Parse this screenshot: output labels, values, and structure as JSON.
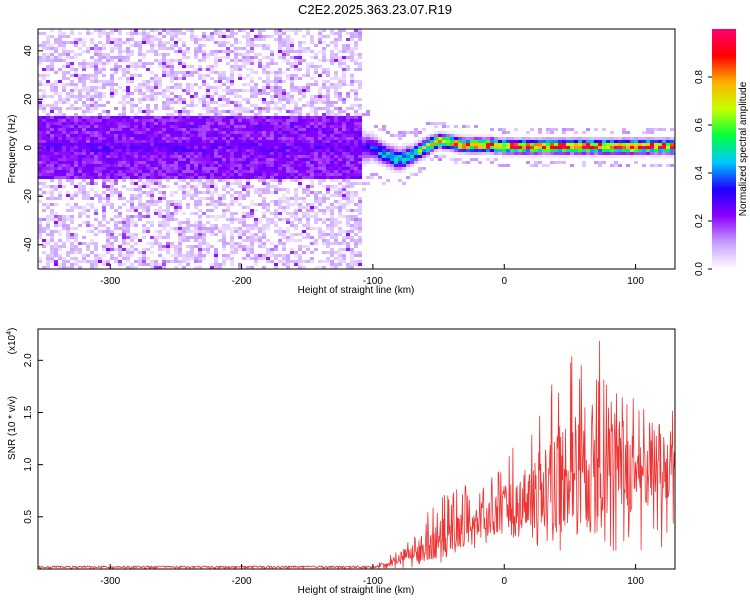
{
  "title": "C2E2.2025.363.23.07.R19",
  "chart_data": [
    {
      "type": "heatmap",
      "title": "C2E2.2025.363.23.07.R19",
      "xlabel": "Height of straight line (km)",
      "ylabel": "Frequency (Hz)",
      "xlim": [
        -355,
        130
      ],
      "ylim": [
        -50,
        49
      ],
      "xticks": [
        -300,
        -200,
        -100,
        0,
        100
      ],
      "xtick_labels": [
        "-300",
        "-200",
        "-100",
        "0",
        "100"
      ],
      "yticks": [
        -40,
        -20,
        0,
        20,
        40
      ],
      "ytick_labels": [
        "-40",
        "-20",
        "0",
        "20",
        "40"
      ],
      "ridge": {
        "x": [
          -355,
          -108,
          -100,
          -90,
          -80,
          -70,
          -60,
          -50,
          -40,
          -30,
          -20,
          -10,
          0,
          20,
          40,
          60,
          80,
          100,
          130
        ],
        "freq": [
          0,
          0,
          0,
          -3,
          -5,
          -3,
          0,
          3,
          2,
          1,
          1,
          1,
          0.5,
          0.5,
          0.5,
          0.5,
          0.5,
          0.5,
          0.5
        ],
        "peak_amplitude": [
          0.25,
          0.25,
          0.35,
          0.45,
          0.5,
          0.55,
          0.6,
          0.7,
          0.78,
          0.82,
          0.85,
          0.85,
          0.85,
          0.87,
          0.88,
          0.9,
          0.9,
          0.9,
          0.9
        ],
        "band_halfwidth_hz": [
          9,
          9,
          7,
          6,
          6,
          5,
          5,
          4,
          4,
          4,
          4,
          4,
          4,
          4,
          4,
          4,
          4,
          4,
          4
        ]
      },
      "noise_region_x": [
        -355,
        -108
      ],
      "colorbar": {
        "label": "Normalized spectral amplitude",
        "range": [
          0,
          1
        ],
        "ticks": [
          0.0,
          0.2,
          0.4,
          0.6,
          0.8
        ],
        "tick_labels": [
          "0.0",
          "0.2",
          "0.4",
          "0.6",
          "0.8"
        ],
        "colors": [
          "#ffffff",
          "#c79bff",
          "#8a00ff",
          "#1e00ff",
          "#00c8ff",
          "#00ff3c",
          "#c8ff00",
          "#ffb000",
          "#ff0000",
          "#ff0070"
        ]
      }
    },
    {
      "type": "line",
      "xlabel": "Height of straight line (km)",
      "ylabel": "SNR (10 * v/v)",
      "exponent_label": "(x10",
      "exponent_power": "4",
      "exponent_close": ")",
      "xlim": [
        -355,
        130
      ],
      "ylim": [
        0,
        2.3
      ],
      "xticks": [
        -300,
        -200,
        -100,
        0,
        100
      ],
      "xtick_labels": [
        "-300",
        "-200",
        "-100",
        "0",
        "100"
      ],
      "yticks": [
        0.5,
        1.0,
        1.5,
        2.0
      ],
      "ytick_labels": [
        "0.5",
        "1.0",
        "1.5",
        "2.0"
      ],
      "color": "#ee3333",
      "series": [
        {
          "name": "SNR",
          "x": [
            -355,
            -100,
            -90,
            -80,
            -70,
            -60,
            -50,
            -40,
            -30,
            -20,
            -10,
            0,
            10,
            20,
            30,
            40,
            50,
            60,
            70,
            75,
            80,
            90,
            100,
            110,
            120,
            130
          ],
          "mean": [
            0.02,
            0.02,
            0.04,
            0.1,
            0.16,
            0.22,
            0.28,
            0.33,
            0.38,
            0.45,
            0.5,
            0.55,
            0.62,
            0.72,
            0.82,
            0.9,
            0.95,
            1.0,
            1.02,
            1.05,
            1.0,
            0.98,
            0.95,
            0.95,
            0.95,
            0.95
          ],
          "max": [
            0.03,
            0.03,
            0.1,
            0.2,
            0.3,
            0.55,
            0.7,
            0.75,
            0.8,
            0.8,
            0.9,
            1.2,
            1.3,
            1.4,
            1.6,
            2.0,
            2.15,
            2.15,
            2.2,
            2.3,
            1.8,
            1.75,
            1.7,
            1.65,
            1.6,
            1.5
          ],
          "min": [
            0.0,
            0.0,
            0.0,
            0.0,
            0.02,
            0.05,
            0.05,
            0.1,
            0.15,
            0.2,
            0.25,
            0.3,
            0.3,
            0.25,
            0.2,
            0.15,
            0.15,
            0.1,
            0.1,
            0.1,
            0.1,
            0.1,
            0.15,
            0.2,
            0.2,
            0.2
          ]
        }
      ]
    }
  ]
}
